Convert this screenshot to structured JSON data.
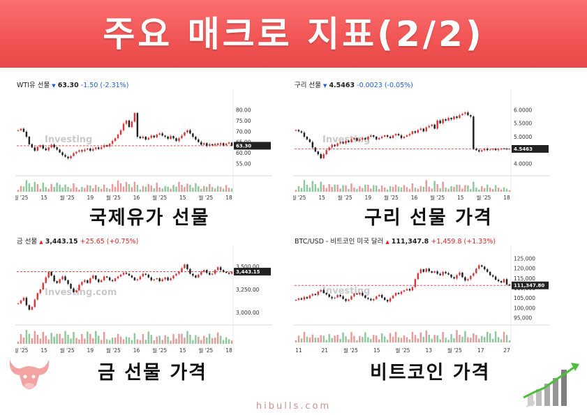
{
  "header": {
    "title": "주요 매크로 지표(2/2)"
  },
  "footer": {
    "site": "hibulls.com"
  },
  "colors": {
    "up": "#d9383a",
    "down": "#222222",
    "vol_up": "#e69a9a",
    "vol_down": "#8ec89c",
    "banner": "#f25656"
  },
  "charts": [
    {
      "id": "wti",
      "caption": "국제유가 선물",
      "title": {
        "name": "WTI유 선물",
        "arrow": "▼",
        "dir": "down",
        "price": "63.30",
        "change": "-1.50 (-2.31%)"
      },
      "watermark": "Investing",
      "last_label": "63.30"
    },
    {
      "id": "copper",
      "caption": "구리 선물 가격",
      "title": {
        "name": "구리 선물",
        "arrow": "▼",
        "dir": "down",
        "price": "4.5463",
        "change": "-0.0023 (-0.05%)"
      },
      "watermark": "Investing",
      "last_label": "4.5463"
    },
    {
      "id": "gold",
      "caption": "금 선물 가격",
      "title": {
        "name": "금 선물",
        "arrow": "▲",
        "dir": "up",
        "price": "3,443.15",
        "change": "+25.65 (+0.75%)"
      },
      "watermark": "Investing.com",
      "last_label": "3,443.15"
    },
    {
      "id": "btc",
      "caption": "비트코인 가격",
      "title": {
        "name": "BTC/USD - 비트코인 미국 달러",
        "arrow": "▲",
        "dir": "up",
        "price": "111,347.8",
        "change": "+1,459.8 (+1.33%)"
      },
      "watermark": "Investing",
      "last_label": "111,347.80"
    }
  ],
  "chart_data": [
    {
      "type": "candlestick",
      "title": "WTI유 선물",
      "ylim": [
        50,
        85
      ],
      "yticks": [
        55,
        60,
        65,
        70,
        75,
        80
      ],
      "ytick_labels": [
        "55.00",
        "60.00",
        "65.00",
        "70.00",
        "75.00",
        "80.00"
      ],
      "xticks": [
        "월 '25",
        "15",
        "월 '25",
        "19",
        "월 '25",
        "16",
        "월 '25",
        "15",
        "월 '25",
        "18"
      ],
      "reference_line": 63.3,
      "close": [
        70.5,
        71.2,
        69.8,
        67.5,
        64.0,
        62.5,
        61.0,
        62.8,
        63.5,
        62.0,
        61.2,
        62.5,
        63.8,
        62.6,
        61.5,
        60.2,
        59.0,
        58.2,
        57.5,
        58.5,
        59.8,
        60.5,
        61.2,
        60.8,
        61.5,
        62.0,
        61.0,
        61.8,
        62.5,
        61.8,
        62.6,
        63.5,
        63.0,
        64.2,
        65.5,
        66.8,
        68.5,
        70.5,
        73.5,
        75.0,
        72.0,
        74.5,
        78.5,
        67.5,
        66.8,
        67.5,
        66.2,
        67.0,
        68.0,
        67.2,
        68.5,
        69.0,
        68.0,
        67.5,
        66.5,
        67.8,
        66.8,
        65.5,
        66.8,
        68.0,
        69.5,
        70.5,
        69.0,
        67.5,
        66.2,
        65.0,
        63.8,
        64.5,
        63.2,
        64.0,
        63.5,
        64.2,
        63.8,
        64.5,
        63.5,
        64.3,
        64.8,
        63.3
      ]
    },
    {
      "type": "candlestick",
      "title": "구리 선물",
      "ylim": [
        3.6,
        6.4
      ],
      "yticks": [
        4.0,
        5.0,
        5.5,
        6.0
      ],
      "ytick_labels": [
        "4.0000",
        "5.0000",
        "5.5000",
        "6.0000"
      ],
      "xticks": [
        "월 '25",
        "15",
        "월 '25",
        "19",
        "월 '25",
        "16",
        "월 '25",
        "15",
        "월 '25",
        "18"
      ],
      "reference_line": 4.5463,
      "close": [
        5.25,
        5.2,
        5.15,
        5.0,
        4.9,
        4.8,
        4.6,
        4.45,
        4.35,
        4.2,
        4.35,
        4.5,
        4.6,
        4.7,
        4.65,
        4.75,
        4.8,
        4.75,
        4.85,
        4.8,
        4.9,
        4.95,
        4.85,
        4.9,
        4.95,
        4.9,
        5.0,
        5.05,
        5.0,
        4.9,
        4.95,
        5.0,
        5.05,
        5.0,
        4.95,
        5.05,
        5.1,
        5.05,
        4.95,
        5.0,
        5.05,
        5.1,
        5.2,
        5.15,
        5.25,
        5.3,
        5.2,
        5.35,
        5.4,
        5.45,
        5.3,
        5.6,
        5.5,
        5.65,
        5.6,
        5.7,
        5.65,
        5.75,
        5.7,
        5.8,
        5.85,
        5.9,
        5.8,
        5.75,
        4.55,
        4.5,
        4.45,
        4.5,
        4.55,
        4.5,
        4.52,
        4.55,
        4.5,
        4.53,
        4.56,
        4.55,
        4.54,
        4.5463
      ]
    },
    {
      "type": "candlestick",
      "title": "금 선물",
      "ylim": [
        2880,
        3620
      ],
      "yticks": [
        3000,
        3250,
        3500
      ],
      "ytick_labels": [
        "3,000.00",
        "3,250.00",
        "3,500.00"
      ],
      "xticks": [
        "월 '25",
        "15",
        "월 '25",
        "19",
        "월 '25",
        "16",
        "월 '25",
        "15",
        "월 '25",
        "18"
      ],
      "reference_line": 3443.15,
      "close": [
        3100,
        3130,
        3160,
        3080,
        3030,
        3060,
        3140,
        3210,
        3250,
        3320,
        3380,
        3440,
        3400,
        3340,
        3320,
        3360,
        3390,
        3350,
        3310,
        3260,
        3220,
        3240,
        3300,
        3330,
        3350,
        3320,
        3370,
        3400,
        3360,
        3330,
        3350,
        3390,
        3380,
        3350,
        3340,
        3370,
        3390,
        3410,
        3430,
        3420,
        3400,
        3380,
        3350,
        3360,
        3390,
        3420,
        3410,
        3380,
        3350,
        3360,
        3370,
        3340,
        3360,
        3380,
        3350,
        3370,
        3400,
        3420,
        3440,
        3480,
        3520,
        3470,
        3420,
        3400,
        3380,
        3410,
        3440,
        3460,
        3430,
        3410,
        3420,
        3460,
        3490,
        3460,
        3440,
        3430,
        3420,
        3443.15
      ]
    },
    {
      "type": "candlestick",
      "title": "BTC/USD - 비트코인 미국 달러",
      "ylim": [
        92000,
        128000
      ],
      "yticks": [
        95000,
        100000,
        105000,
        110000,
        115000,
        120000,
        125000
      ],
      "ytick_labels": [
        "95,000",
        "100,000",
        "105,000",
        "110,000",
        "115,000",
        "120,000",
        "125,000"
      ],
      "xticks": [
        "11",
        "21",
        "월 '25",
        "15",
        "월 '25",
        "13",
        "월 '25",
        "17",
        "27"
      ],
      "reference_line": 111347.8,
      "close": [
        104000,
        104800,
        104200,
        105500,
        104800,
        106200,
        107000,
        106500,
        108200,
        109000,
        107500,
        106800,
        105500,
        104800,
        105200,
        106500,
        105800,
        104500,
        103500,
        104200,
        105800,
        107200,
        106800,
        107500,
        106200,
        105000,
        104500,
        103800,
        104500,
        105800,
        106500,
        105200,
        104000,
        103200,
        104800,
        106200,
        107500,
        107000,
        108200,
        108800,
        109500,
        108800,
        110500,
        114500,
        117500,
        119500,
        118200,
        119800,
        118500,
        117800,
        118500,
        117200,
        116500,
        118200,
        117500,
        116800,
        115500,
        114800,
        116500,
        117800,
        115500,
        113800,
        114500,
        116200,
        117500,
        119800,
        121500,
        120800,
        119500,
        118200,
        116500,
        115800,
        114200,
        113500,
        112800,
        114500,
        111800,
        111347.8
      ]
    }
  ]
}
